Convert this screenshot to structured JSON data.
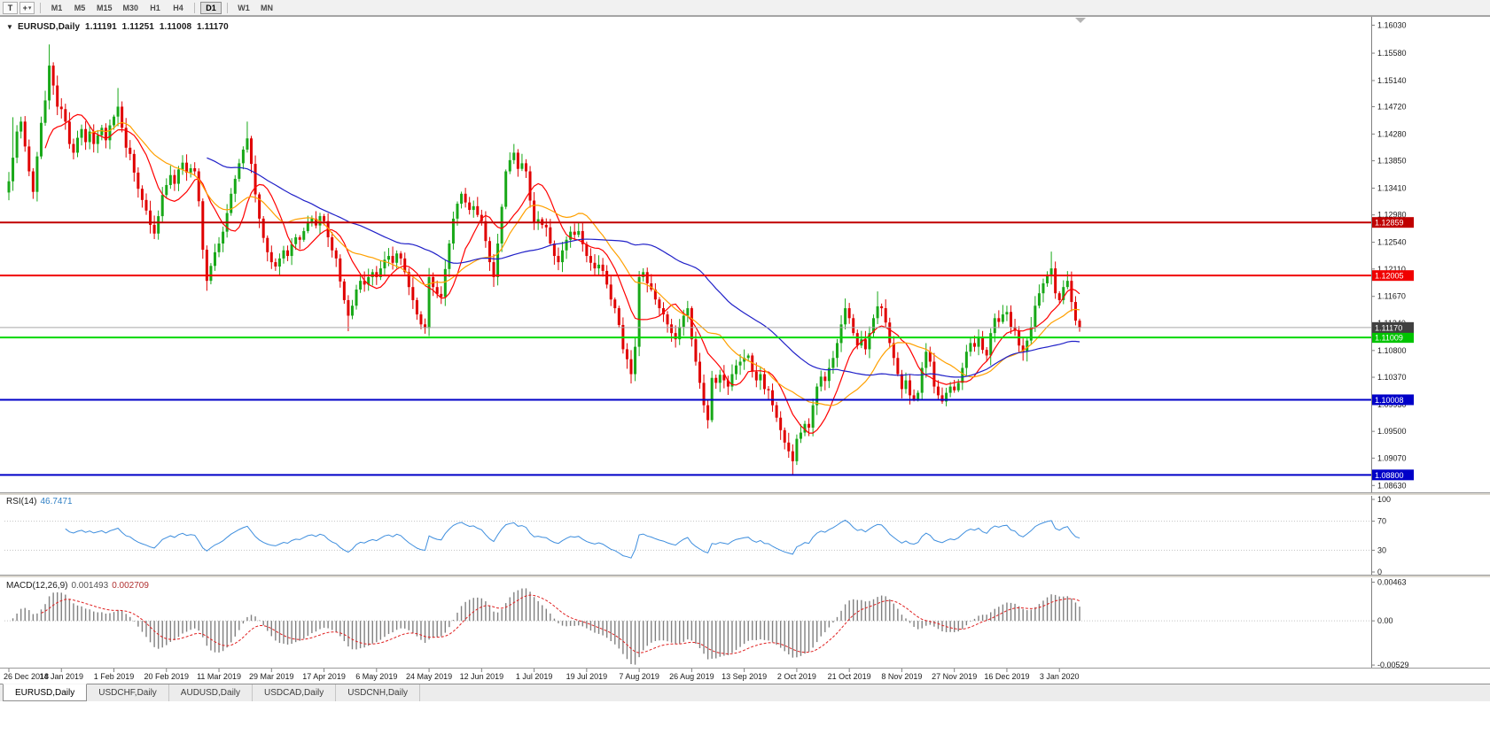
{
  "toolbar": {
    "text_tool_label": "T",
    "cursor_tool_glyph": "+",
    "caret_glyph": "▾",
    "timeframes": [
      {
        "label": "M1",
        "active": false
      },
      {
        "label": "M5",
        "active": false
      },
      {
        "label": "M15",
        "active": false
      },
      {
        "label": "M30",
        "active": false
      },
      {
        "label": "H1",
        "active": false
      },
      {
        "label": "H4",
        "active": false
      },
      {
        "label": "D1",
        "active": true
      },
      {
        "label": "W1",
        "active": false
      },
      {
        "label": "MN",
        "active": false
      }
    ]
  },
  "chart_header": {
    "collapse_marker": "▼",
    "symbol": "EURUSD,Daily",
    "open": "1.11191",
    "high": "1.11251",
    "low": "1.11008",
    "close": "1.11170"
  },
  "indicators": {
    "rsi": {
      "name": "RSI(14)",
      "value": "46.7471"
    },
    "macd": {
      "name": "MACD(12,26,9)",
      "value_main": "0.001493",
      "value_signal": "0.002709"
    }
  },
  "tabs": [
    {
      "label": "EURUSD,Daily",
      "active": true
    },
    {
      "label": "USDCHF,Daily",
      "active": false
    },
    {
      "label": "AUDUSD,Daily",
      "active": false
    },
    {
      "label": "USDCAD,Daily",
      "active": false
    },
    {
      "label": "USDCNH,Daily",
      "active": false
    }
  ],
  "chart_data": {
    "type": "candlestick",
    "symbol": "EURUSD",
    "timeframe": "Daily",
    "main_ylim": [
      1.0852,
      1.1615
    ],
    "y_ticks": [
      "1.16030",
      "1.15580",
      "1.15140",
      "1.14720",
      "1.14280",
      "1.13850",
      "1.13410",
      "1.12980",
      "1.12540",
      "1.12110",
      "1.11670",
      "1.11240",
      "1.10800",
      "1.10370",
      "1.09930",
      "1.09500",
      "1.09070",
      "1.08630"
    ],
    "closes": [
      1.1352,
      1.139,
      1.1432,
      1.1448,
      1.1408,
      1.1368,
      1.1335,
      1.1392,
      1.1446,
      1.1482,
      1.1538,
      1.1506,
      1.1472,
      1.1468,
      1.1448,
      1.1412,
      1.1398,
      1.1422,
      1.1436,
      1.1415,
      1.1432,
      1.1412,
      1.1426,
      1.1438,
      1.1418,
      1.1442,
      1.1456,
      1.1472,
      1.1438,
      1.1406,
      1.1396,
      1.1366,
      1.134,
      1.1322,
      1.1305,
      1.1282,
      1.1268,
      1.1296,
      1.133,
      1.1346,
      1.1362,
      1.1348,
      1.1371,
      1.1382,
      1.1366,
      1.1373,
      1.1368,
      1.132,
      1.1242,
      1.1192,
      1.1216,
      1.1238,
      1.1252,
      1.1271,
      1.1301,
      1.1332,
      1.1356,
      1.1381,
      1.1403,
      1.1421,
      1.138,
      1.1331,
      1.1292,
      1.1261,
      1.1238,
      1.1222,
      1.1215,
      1.1228,
      1.1241,
      1.1232,
      1.1251,
      1.1262,
      1.1258,
      1.1272,
      1.1286,
      1.1292,
      1.1281,
      1.1296,
      1.1288,
      1.1262,
      1.1241,
      1.1228,
      1.1191,
      1.1161,
      1.1136,
      1.1152,
      1.1178,
      1.1192,
      1.1186,
      1.1198,
      1.1206,
      1.1198,
      1.1212,
      1.1226,
      1.1232,
      1.1221,
      1.1236,
      1.1228,
      1.1206,
      1.1182,
      1.1161,
      1.1138,
      1.1122,
      1.1116,
      1.1198,
      1.1182,
      1.1171,
      1.1166,
      1.1211,
      1.1252,
      1.1292,
      1.1316,
      1.1332,
      1.1318,
      1.1306,
      1.1312,
      1.1298,
      1.1288,
      1.1256,
      1.1222,
      1.1198,
      1.1252,
      1.1311,
      1.1368,
      1.1386,
      1.1398,
      1.1372,
      1.1381,
      1.1368,
      1.1321,
      1.1286,
      1.1291,
      1.1282,
      1.1278,
      1.1252,
      1.1232,
      1.1222,
      1.1241,
      1.1258,
      1.1271,
      1.1266,
      1.1272,
      1.1251,
      1.1232,
      1.1221,
      1.1212,
      1.1218,
      1.1208,
      1.1186,
      1.1162,
      1.1148,
      1.1121,
      1.1082,
      1.1066,
      1.1042,
      1.1086,
      1.1198,
      1.1206,
      1.1188,
      1.1178,
      1.1162,
      1.1148,
      1.1138,
      1.1122,
      1.1108,
      1.1098,
      1.1118,
      1.1136,
      1.1148,
      1.1098,
      1.1062,
      1.1028,
      1.0992,
      1.0968,
      1.1036,
      1.1028,
      1.1041,
      1.1032,
      1.1022,
      1.1042,
      1.1056,
      1.1062,
      1.1068,
      1.1072,
      1.1046,
      1.1032,
      1.1042,
      1.1018,
      1.1016,
      1.0992,
      1.0972,
      1.0952,
      1.0932,
      1.0918,
      1.0902,
      1.0938,
      1.0948,
      1.0962,
      1.0956,
      1.0992,
      1.1022,
      1.1038,
      1.1031,
      1.1052,
      1.1068,
      1.1092,
      1.1122,
      1.1148,
      1.1132,
      1.1108,
      1.1088,
      1.1098,
      1.1082,
      1.1108,
      1.1132,
      1.1151,
      1.1148,
      1.1125,
      1.1092,
      1.1068,
      1.1042,
      1.1018,
      1.1032,
      1.1008,
      1.1002,
      1.1012,
      1.1052,
      1.1078,
      1.1062,
      1.1022,
      1.1008,
      1.0998,
      1.1012,
      1.1022,
      1.1016,
      1.1028,
      1.1052,
      1.1078,
      1.1092,
      1.1086,
      1.1102,
      1.1081,
      1.1072,
      1.1108,
      1.1132,
      1.1126,
      1.1138,
      1.1142,
      1.1118,
      1.1112,
      1.1088,
      1.1078,
      1.1096,
      1.1118,
      1.1152,
      1.1172,
      1.1188,
      1.1202,
      1.1212,
      1.1172,
      1.1161,
      1.1182,
      1.1192,
      1.1158,
      1.1128,
      1.1117
    ],
    "spikes": [
      {
        "i": 1,
        "high": 1.1455
      },
      {
        "i": 10,
        "high": 1.1572
      },
      {
        "i": 27,
        "high": 1.1502
      },
      {
        "i": 49,
        "low": 1.1176
      },
      {
        "i": 59,
        "high": 1.1448
      },
      {
        "i": 84,
        "low": 1.1111
      },
      {
        "i": 103,
        "low": 1.1107
      },
      {
        "i": 125,
        "high": 1.1412
      },
      {
        "i": 154,
        "low": 1.1027
      },
      {
        "i": 194,
        "low": 1.0879
      },
      {
        "i": 215,
        "high": 1.1175
      },
      {
        "i": 258,
        "high": 1.1239
      }
    ],
    "moving_averages": [
      {
        "period": 10,
        "color": "#FF0000"
      },
      {
        "period": 21,
        "color": "#FFA000"
      },
      {
        "period": 50,
        "color": "#2020C8"
      }
    ],
    "hlines": [
      {
        "value": 1.12859,
        "label": "1.12859",
        "color": "#C00000",
        "tag_bg": "#C00000",
        "width": 2
      },
      {
        "value": 1.12005,
        "label": "1.12005",
        "color": "#F00000",
        "tag_bg": "#F00000",
        "width": 2
      },
      {
        "value": 1.11009,
        "label": "1.11009",
        "color": "#00D800",
        "tag_bg": "#00C400",
        "width": 2
      },
      {
        "value": 1.10008,
        "label": "1.10008",
        "color": "#0000C8",
        "tag_bg": "#0000C8",
        "width": 2
      },
      {
        "value": 1.088,
        "label": "1.08800",
        "color": "#0000C8",
        "tag_bg": "#0000C8",
        "width": 2
      },
      {
        "value": 1.1117,
        "label": "1.11170",
        "color": "#a8a8a8",
        "tag_bg": "#404040",
        "width": 1
      }
    ],
    "x_labels": [
      {
        "i": 0,
        "text": "26 Dec 2018"
      },
      {
        "i": 13,
        "text": "14 Jan 2019"
      },
      {
        "i": 26,
        "text": "1 Feb 2019"
      },
      {
        "i": 39,
        "text": "20 Feb 2019"
      },
      {
        "i": 52,
        "text": "11 Mar 2019"
      },
      {
        "i": 65,
        "text": "29 Mar 2019"
      },
      {
        "i": 78,
        "text": "17 Apr 2019"
      },
      {
        "i": 91,
        "text": "6 May 2019"
      },
      {
        "i": 104,
        "text": "24 May 2019"
      },
      {
        "i": 117,
        "text": "12 Jun 2019"
      },
      {
        "i": 130,
        "text": "1 Jul 2019"
      },
      {
        "i": 143,
        "text": "19 Jul 2019"
      },
      {
        "i": 156,
        "text": "7 Aug 2019"
      },
      {
        "i": 169,
        "text": "26 Aug 2019"
      },
      {
        "i": 182,
        "text": "13 Sep 2019"
      },
      {
        "i": 195,
        "text": "2 Oct 2019"
      },
      {
        "i": 208,
        "text": "21 Oct 2019"
      },
      {
        "i": 221,
        "text": "8 Nov 2019"
      },
      {
        "i": 234,
        "text": "27 Nov 2019"
      },
      {
        "i": 247,
        "text": "16 Dec 2019"
      },
      {
        "i": 260,
        "text": "3 Jan 2020"
      }
    ],
    "rsi": {
      "period": 14,
      "color": "#3E8EDE",
      "ticks": [
        "100",
        "70",
        "30",
        "0"
      ],
      "dotted_levels": [
        70,
        30
      ],
      "ylim": [
        0,
        100
      ]
    },
    "macd": {
      "fast": 12,
      "slow": 26,
      "signal": 9,
      "hist_color": "#808080",
      "signal_color": "#E02020",
      "ticks": [
        "0.00463",
        "0.00",
        "-0.00529"
      ],
      "ylim": [
        -0.0056,
        0.0051
      ]
    },
    "colors": {
      "up": "#18A818",
      "down": "#E00000",
      "axis_text": "#1a1a1a"
    }
  }
}
